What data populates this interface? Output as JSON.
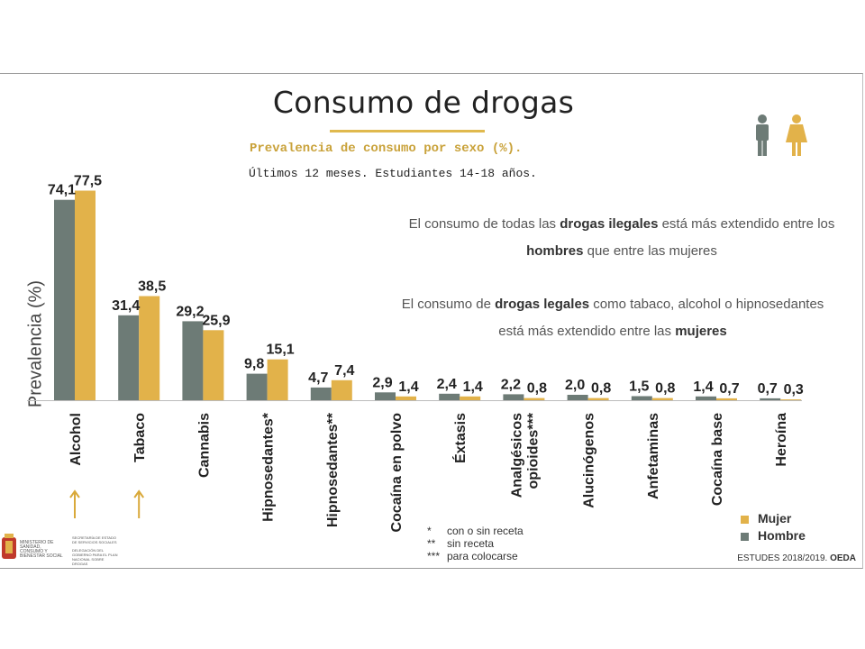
{
  "header": {
    "title": "Consumo de drogas",
    "subtitle": "Prevalencia de consumo por sexo (%).",
    "subtitle2": "Últimos 12 meses. Estudiantes 14-18 años."
  },
  "notes": {
    "note1_pre": "El consumo de todas las ",
    "note1_b1": "drogas ilegales",
    "note1_mid": " está más extendido entre los ",
    "note1_b2": "hombres",
    "note1_post": " que entre las mujeres",
    "note2_pre": "El consumo de ",
    "note2_b1": "drogas legales",
    "note2_mid": " como tabaco, alcohol o hipnosedantes está más extendido entre las ",
    "note2_b2": "mujeres"
  },
  "chart_data": {
    "type": "bar",
    "ylabel": "Prevalencia (%)",
    "categories": [
      "Alcohol",
      "Tabaco",
      "Cannabis",
      "Hipnosedantes*",
      "Hipnosedantes**",
      "Cocaína en polvo",
      "Éxtasis",
      "Analgésicos opioides***",
      "Alucinógenos",
      "Anfetaminas",
      "Cocaína base",
      "Heroína"
    ],
    "category_lines": [
      [
        "Alcohol"
      ],
      [
        "Tabaco"
      ],
      [
        "Cannabis"
      ],
      [
        "Hipnosedantes*"
      ],
      [
        "Hipnosedantes**"
      ],
      [
        "Cocaína en polvo"
      ],
      [
        "Éxtasis"
      ],
      [
        "Analgésicos",
        "opioides***"
      ],
      [
        "Alucinógenos"
      ],
      [
        "Anfetaminas"
      ],
      [
        "Cocaína base"
      ],
      [
        "Heroína"
      ]
    ],
    "series": [
      {
        "name": "Hombre",
        "color": "#6d7b76",
        "values": [
          74.1,
          31.4,
          29.2,
          9.8,
          4.7,
          2.9,
          2.4,
          2.2,
          2.0,
          1.5,
          1.4,
          0.7
        ]
      },
      {
        "name": "Mujer",
        "color": "#e2b24a",
        "values": [
          77.5,
          38.5,
          25.9,
          15.1,
          7.4,
          1.4,
          1.4,
          0.8,
          0.8,
          0.8,
          0.7,
          0.3
        ]
      }
    ],
    "labels_hombre": [
      "74,1",
      "31,4",
      "29,2",
      "9,8",
      "4,7",
      "2,9",
      "2,4",
      "2,2",
      "2,0",
      "1,5",
      "1,4",
      "0,7"
    ],
    "labels_mujer": [
      "77,5",
      "38,5",
      "25,9",
      "15,1",
      "7,4",
      "1,4",
      "1,4",
      "0,8",
      "0,8",
      "0,8",
      "0,7",
      "0,3"
    ],
    "ylim": [
      0,
      80
    ],
    "arrow_categories": [
      "Alcohol",
      "Tabaco"
    ]
  },
  "legend": {
    "items": [
      {
        "label": "Mujer",
        "color": "#e2b24a"
      },
      {
        "label": "Hombre",
        "color": "#6d7b76"
      }
    ]
  },
  "footnotes": [
    {
      "key": "*",
      "text": "con o sin receta"
    },
    {
      "key": "**",
      "text": "sin receta"
    },
    {
      "key": "***",
      "text": "para colocarse"
    }
  ],
  "source": {
    "prefix": "ESTUDES 2018/2019. ",
    "bold": "OEDA"
  },
  "logo": {
    "ministry": "MINISTERIO DE SANIDAD, CONSUMO Y BIENESTAR SOCIAL",
    "secretaria": "SECRETARÍA DE ESTADO DE SERVICIOS SOCIALES",
    "delegacion": "DELEGACIÓN DEL GOBIERNO PARA EL PLAN NACIONAL SOBRE DROGAS"
  }
}
